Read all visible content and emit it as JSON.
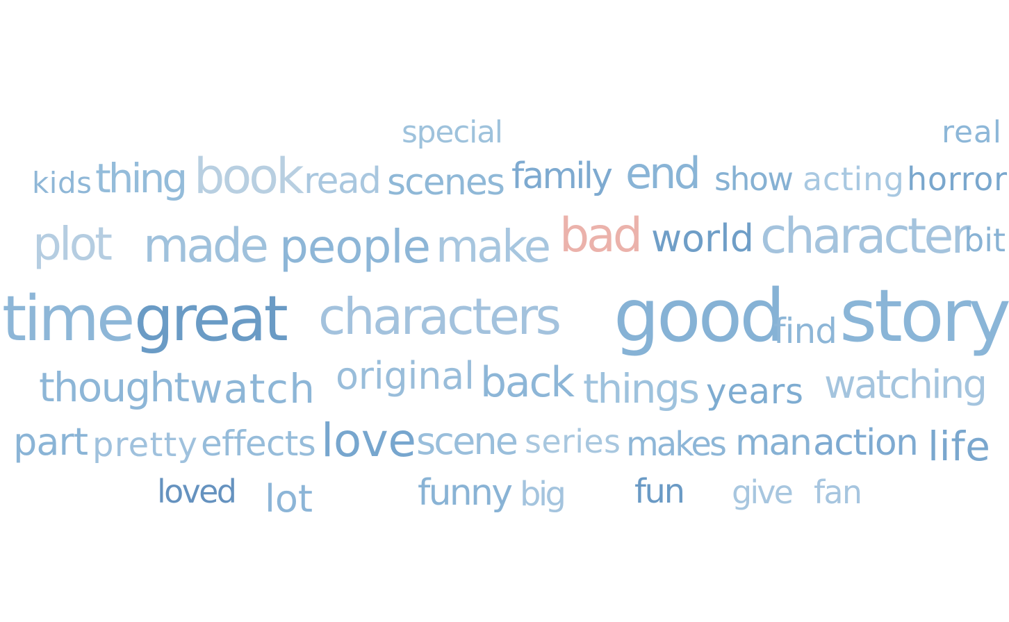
{
  "chart_data": {
    "type": "wordcloud",
    "words": [
      {
        "text": "special",
        "color": "#9ec2dc"
      },
      {
        "text": "real",
        "color": "#8db7d8"
      },
      {
        "text": "kids",
        "color": "#8fb7d7"
      },
      {
        "text": "thing",
        "color": "#94bcda"
      },
      {
        "text": "book",
        "color": "#b8cfe1"
      },
      {
        "text": "read",
        "color": "#a9c7df"
      },
      {
        "text": "scenes",
        "color": "#8fb8d7"
      },
      {
        "text": "family",
        "color": "#7eaad0"
      },
      {
        "text": "end",
        "color": "#89b4d6"
      },
      {
        "text": "show",
        "color": "#86b1d3"
      },
      {
        "text": "acting",
        "color": "#a8c8e1"
      },
      {
        "text": "horror",
        "color": "#7aa7cd"
      },
      {
        "text": "plot",
        "color": "#b5cde1"
      },
      {
        "text": "made",
        "color": "#9fc1dc"
      },
      {
        "text": "people",
        "color": "#8db6d7"
      },
      {
        "text": "make",
        "color": "#a7c6df"
      },
      {
        "text": "bad",
        "color": "#ebb2ab"
      },
      {
        "text": "world",
        "color": "#6f9ec7"
      },
      {
        "text": "character",
        "color": "#a4c3dd"
      },
      {
        "text": "bit",
        "color": "#88b2d4"
      },
      {
        "text": "time",
        "color": "#8db6d7"
      },
      {
        "text": "great",
        "color": "#6a9bc5"
      },
      {
        "text": "characters",
        "color": "#a3c2dd"
      },
      {
        "text": "good",
        "color": "#86b2d5"
      },
      {
        "text": "find",
        "color": "#8db6d7"
      },
      {
        "text": "story",
        "color": "#8ab5d7"
      },
      {
        "text": "thought",
        "color": "#8db6d7"
      },
      {
        "text": "watch",
        "color": "#8db6d7"
      },
      {
        "text": "original",
        "color": "#99bdda"
      },
      {
        "text": "back",
        "color": "#8db6d7"
      },
      {
        "text": "things",
        "color": "#9ec2dd"
      },
      {
        "text": "years",
        "color": "#7eacd1"
      },
      {
        "text": "watching",
        "color": "#a4c4de"
      },
      {
        "text": "part",
        "color": "#8ab4d6"
      },
      {
        "text": "pretty",
        "color": "#9fc1dd"
      },
      {
        "text": "effects",
        "color": "#96bcda"
      },
      {
        "text": "love",
        "color": "#77a6ce"
      },
      {
        "text": "scene",
        "color": "#99bedb"
      },
      {
        "text": "series",
        "color": "#a8c7df"
      },
      {
        "text": "makes",
        "color": "#8db6d7"
      },
      {
        "text": "man",
        "color": "#86b1d4"
      },
      {
        "text": "action",
        "color": "#7eaad1"
      },
      {
        "text": "life",
        "color": "#7aa7ce"
      },
      {
        "text": "loved",
        "color": "#6592bf"
      },
      {
        "text": "lot",
        "color": "#8cb5d7"
      },
      {
        "text": "funny",
        "color": "#89b3d5"
      },
      {
        "text": "big",
        "color": "#a4c4de"
      },
      {
        "text": "fun",
        "color": "#6a9ac5"
      },
      {
        "text": "give",
        "color": "#a7c6df"
      },
      {
        "text": "fan",
        "color": "#a6c5df"
      }
    ]
  }
}
